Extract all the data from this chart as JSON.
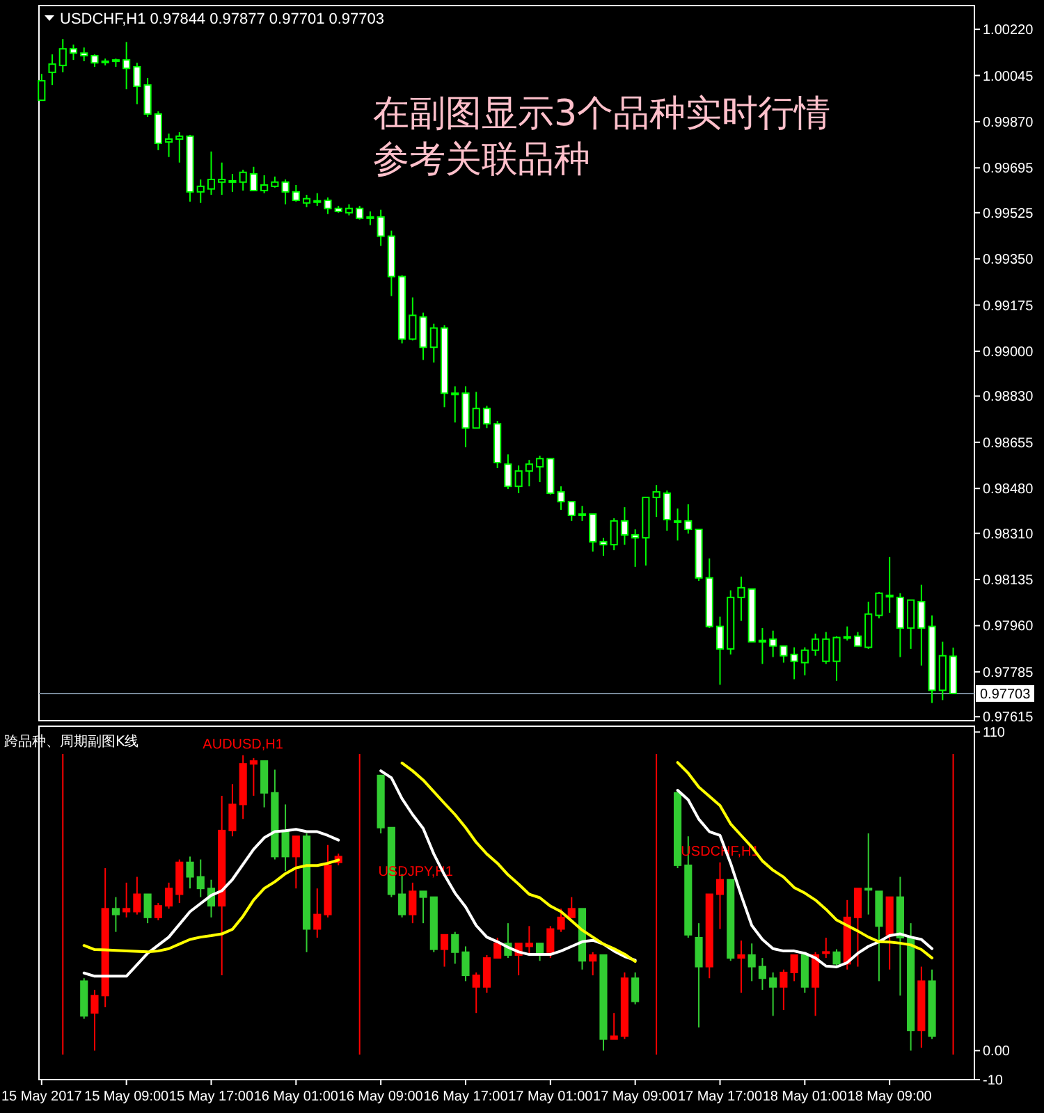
{
  "chart_data": [
    {
      "type": "candlestick",
      "title": "USDCHF,H1  0.97844 0.97877 0.97701 0.97703",
      "annotations": [
        "在副图显示3个品种实时行情",
        "参考关联品种"
      ],
      "xlim": [
        "2017-05-15T00:45",
        "2017-05-18T17:00"
      ],
      "ylim": [
        0.976,
        1.0031
      ],
      "yticks": [
        {
          "value": 1.0022,
          "label": "1.00220"
        },
        {
          "value": 1.00045,
          "label": "1.00045"
        },
        {
          "value": 0.9987,
          "label": "0.99870"
        },
        {
          "value": 0.99695,
          "label": "0.99695"
        },
        {
          "value": 0.99525,
          "label": "0.99525"
        },
        {
          "value": 0.9935,
          "label": "0.99350"
        },
        {
          "value": 0.99175,
          "label": "0.99175"
        },
        {
          "value": 0.99,
          "label": "0.99000"
        },
        {
          "value": 0.9883,
          "label": "0.98830"
        },
        {
          "value": 0.98655,
          "label": "0.98655"
        },
        {
          "value": 0.9848,
          "label": "0.98480"
        },
        {
          "value": 0.9831,
          "label": "0.98310"
        },
        {
          "value": 0.98135,
          "label": "0.98135"
        },
        {
          "value": 0.9796,
          "label": "0.97960"
        },
        {
          "value": 0.97785,
          "label": "0.97785"
        },
        {
          "value": 0.97615,
          "label": "0.97615"
        }
      ],
      "tick_labels": "y",
      "ref_lines": [
        {
          "axis": "y",
          "value": 0.97703,
          "label": "0.97703",
          "color": "#778899"
        }
      ],
      "series": [
        {
          "color": "#00ff00",
          "x": [
            "2017-05-15T01:00",
            "2017-05-15T02:00",
            "2017-05-15T03:00",
            "2017-05-15T04:00",
            "2017-05-15T05:00",
            "2017-05-15T06:00",
            "2017-05-15T07:00",
            "2017-05-15T08:00",
            "2017-05-15T09:00",
            "2017-05-15T10:00",
            "2017-05-15T11:00",
            "2017-05-15T12:00",
            "2017-05-15T13:00",
            "2017-05-15T14:00",
            "2017-05-15T15:00",
            "2017-05-15T16:00",
            "2017-05-15T17:00",
            "2017-05-15T18:00",
            "2017-05-15T19:00",
            "2017-05-15T20:00",
            "2017-05-15T21:00",
            "2017-05-15T22:00",
            "2017-05-15T23:00",
            "2017-05-16T00:00",
            "2017-05-16T01:00",
            "2017-05-16T02:00",
            "2017-05-16T03:00",
            "2017-05-16T04:00",
            "2017-05-16T05:00",
            "2017-05-16T06:00",
            "2017-05-16T07:00",
            "2017-05-16T08:00",
            "2017-05-16T09:00",
            "2017-05-16T10:00",
            "2017-05-16T11:00",
            "2017-05-16T12:00",
            "2017-05-16T13:00",
            "2017-05-16T14:00",
            "2017-05-16T15:00",
            "2017-05-16T16:00",
            "2017-05-16T17:00",
            "2017-05-16T18:00",
            "2017-05-16T19:00",
            "2017-05-16T20:00",
            "2017-05-16T21:00",
            "2017-05-16T22:00",
            "2017-05-16T23:00",
            "2017-05-17T00:00",
            "2017-05-17T01:00",
            "2017-05-17T02:00",
            "2017-05-17T03:00",
            "2017-05-17T04:00",
            "2017-05-17T05:00",
            "2017-05-17T06:00",
            "2017-05-17T07:00",
            "2017-05-17T08:00",
            "2017-05-17T09:00",
            "2017-05-17T10:00",
            "2017-05-17T11:00",
            "2017-05-17T12:00",
            "2017-05-17T13:00",
            "2017-05-17T14:00",
            "2017-05-17T15:00",
            "2017-05-17T16:00",
            "2017-05-17T17:00",
            "2017-05-17T18:00",
            "2017-05-17T19:00",
            "2017-05-17T20:00",
            "2017-05-17T21:00",
            "2017-05-17T22:00",
            "2017-05-17T23:00",
            "2017-05-18T00:00",
            "2017-05-18T01:00",
            "2017-05-18T02:00",
            "2017-05-18T03:00",
            "2017-05-18T04:00",
            "2017-05-18T05:00",
            "2017-05-18T06:00",
            "2017-05-18T07:00",
            "2017-05-18T08:00",
            "2017-05-18T09:00",
            "2017-05-18T10:00",
            "2017-05-18T11:00",
            "2017-05-18T12:00",
            "2017-05-18T13:00",
            "2017-05-18T14:00",
            "2017-05-18T15:00"
          ],
          "ohlc": [
            [
              0.99951,
              1.00051,
              0.99951,
              1.00025
            ],
            [
              1.00057,
              1.00125,
              1.00009,
              1.00088
            ],
            [
              1.00083,
              1.00183,
              1.00057,
              1.00146
            ],
            [
              1.00146,
              1.00162,
              1.00104,
              1.0013
            ],
            [
              1.0013,
              1.00151,
              1.00099,
              1.0012
            ],
            [
              1.0012,
              1.00125,
              1.00078,
              1.00093
            ],
            [
              1.00099,
              1.00109,
              1.00083,
              1.00096
            ],
            [
              1.00101,
              1.00109,
              1.00078,
              1.00104
            ],
            [
              1.00104,
              1.00172,
              0.99993,
              1.00072
            ],
            [
              1.00078,
              1.00093,
              0.99936,
              1.00004
            ],
            [
              1.00009,
              1.00036,
              0.99888,
              0.99899
            ],
            [
              0.99899,
              0.99909,
              0.99762,
              0.99788
            ],
            [
              0.99793,
              0.99825,
              0.99736,
              0.99804
            ],
            [
              0.99804,
              0.9983,
              0.99715,
              0.99815
            ],
            [
              0.99815,
              0.9982,
              0.99567,
              0.99604
            ],
            [
              0.99604,
              0.99651,
              0.99562,
              0.99625
            ],
            [
              0.99615,
              0.99757,
              0.99593,
              0.99651
            ],
            [
              0.99641,
              0.99715,
              0.99593,
              0.99651
            ],
            [
              0.99646,
              0.99672,
              0.99604,
              0.99643
            ],
            [
              0.99641,
              0.99688,
              0.99609,
              0.99678
            ],
            [
              0.99672,
              0.99699,
              0.99609,
              0.99609
            ],
            [
              0.99609,
              0.99667,
              0.99599,
              0.9963
            ],
            [
              0.99625,
              0.99662,
              0.9962,
              0.99641
            ],
            [
              0.99641,
              0.99651,
              0.99557,
              0.99604
            ],
            [
              0.99604,
              0.9963,
              0.99567,
              0.99572
            ],
            [
              0.99562,
              0.99593,
              0.99546,
              0.99578
            ],
            [
              0.99567,
              0.99599,
              0.99551,
              0.9957
            ],
            [
              0.99572,
              0.99583,
              0.9952,
              0.99541
            ],
            [
              0.99541,
              0.99551,
              0.99525,
              0.9953
            ],
            [
              0.99525,
              0.99557,
              0.99515,
              0.99541
            ],
            [
              0.99541,
              0.99551,
              0.99499,
              0.99504
            ],
            [
              0.99509,
              0.9953,
              0.99478,
              0.99506
            ],
            [
              0.99509,
              0.99536,
              0.99399,
              0.99436
            ],
            [
              0.99436,
              0.99457,
              0.99209,
              0.99283
            ],
            [
              0.99283,
              0.99288,
              0.9903,
              0.99046
            ],
            [
              0.99046,
              0.99204,
              0.99041,
              0.99136
            ],
            [
              0.9913,
              0.99146,
              0.98967,
              0.99015
            ],
            [
              0.99015,
              0.99104,
              0.98957,
              0.99088
            ],
            [
              0.99088,
              0.99099,
              0.98788,
              0.98841
            ],
            [
              0.98841,
              0.98867,
              0.9873,
              0.98838
            ],
            [
              0.98841,
              0.98867,
              0.98636,
              0.98709
            ],
            [
              0.98709,
              0.98846,
              0.98709,
              0.98783
            ],
            [
              0.98783,
              0.98793,
              0.98709,
              0.98725
            ],
            [
              0.98725,
              0.98736,
              0.98557,
              0.98578
            ],
            [
              0.98572,
              0.98609,
              0.98478,
              0.98488
            ],
            [
              0.98488,
              0.98567,
              0.98462,
              0.98546
            ],
            [
              0.98546,
              0.98588,
              0.98488,
              0.98572
            ],
            [
              0.98562,
              0.98604,
              0.98504,
              0.98593
            ],
            [
              0.98593,
              0.98593,
              0.98457,
              0.98462
            ],
            [
              0.98467,
              0.98488,
              0.98399,
              0.9843
            ],
            [
              0.9843,
              0.9843,
              0.98357,
              0.98378
            ],
            [
              0.98383,
              0.98414,
              0.98357,
              0.98381
            ],
            [
              0.98383,
              0.98383,
              0.98241,
              0.98278
            ],
            [
              0.98278,
              0.98293,
              0.98225,
              0.98267
            ],
            [
              0.98267,
              0.98367,
              0.98246,
              0.98357
            ],
            [
              0.98357,
              0.98409,
              0.98267,
              0.98304
            ],
            [
              0.98304,
              0.98325,
              0.98183,
              0.98293
            ],
            [
              0.98293,
              0.98446,
              0.98188,
              0.98446
            ],
            [
              0.98446,
              0.98493,
              0.98372,
              0.98467
            ],
            [
              0.98462,
              0.98472,
              0.9832,
              0.98362
            ],
            [
              0.98357,
              0.98404,
              0.98283,
              0.98354
            ],
            [
              0.98357,
              0.9842,
              0.98309,
              0.98325
            ],
            [
              0.98325,
              0.98325,
              0.9813,
              0.98141
            ],
            [
              0.98141,
              0.98215,
              0.97951,
              0.97957
            ],
            [
              0.97957,
              0.97994,
              0.97736,
              0.97872
            ],
            [
              0.97872,
              0.98094,
              0.97851,
              0.98067
            ],
            [
              0.98067,
              0.98146,
              0.97978,
              0.98104
            ],
            [
              0.98099,
              0.98099,
              0.97899,
              0.97899
            ],
            [
              0.97904,
              0.97951,
              0.97815,
              0.97901
            ],
            [
              0.97909,
              0.97941,
              0.97841,
              0.97883
            ],
            [
              0.97883,
              0.97883,
              0.9782,
              0.97846
            ],
            [
              0.97851,
              0.97878,
              0.97757,
              0.97825
            ],
            [
              0.9782,
              0.97878,
              0.97772,
              0.97867
            ],
            [
              0.97867,
              0.9793,
              0.97846,
              0.97909
            ],
            [
              0.97825,
              0.97936,
              0.97815,
              0.97909
            ],
            [
              0.97825,
              0.9792,
              0.97751,
              0.97915
            ],
            [
              0.97915,
              0.97957,
              0.97904,
              0.97918
            ],
            [
              0.9792,
              0.97936,
              0.97883,
              0.97883
            ],
            [
              0.97878,
              0.98051,
              0.97872,
              0.98004
            ],
            [
              0.97999,
              0.98088,
              0.97988,
              0.98083
            ],
            [
              0.98072,
              0.9822,
              0.98009,
              0.98075
            ],
            [
              0.98067,
              0.98083,
              0.97841,
              0.97951
            ],
            [
              0.97951,
              0.98057,
              0.97872,
              0.98057
            ],
            [
              0.98051,
              0.98115,
              0.97809,
              0.97951
            ],
            [
              0.97957,
              0.97999,
              0.97667,
              0.97715
            ],
            [
              0.97715,
              0.97899,
              0.97678,
              0.97846
            ],
            [
              0.97844,
              0.97877,
              0.97701,
              0.97703
            ]
          ],
          "colors": [
            "#000000",
            "#000000",
            "#000000",
            "#ffffff",
            "#ffffff",
            "#ffffff",
            "#ffffff",
            "#000000",
            "#ffffff",
            "#ffffff",
            "#ffffff",
            "#ffffff",
            "#000000",
            "#000000",
            "#ffffff",
            "#000000",
            "#000000",
            "#000000",
            "#ffffff",
            "#000000",
            "#ffffff",
            "#000000",
            "#000000",
            "#ffffff",
            "#ffffff",
            "#000000",
            "#000000",
            "#ffffff",
            "#ffffff",
            "#000000",
            "#ffffff",
            "#ffffff",
            "#ffffff",
            "#ffffff",
            "#ffffff",
            "#000000",
            "#ffffff",
            "#000000",
            "#ffffff",
            "#ffffff",
            "#ffffff",
            "#000000",
            "#ffffff",
            "#ffffff",
            "#ffffff",
            "#000000",
            "#000000",
            "#000000",
            "#ffffff",
            "#ffffff",
            "#ffffff",
            "#ffffff",
            "#ffffff",
            "#ffffff",
            "#000000",
            "#ffffff",
            "#ffffff",
            "#000000",
            "#000000",
            "#ffffff",
            "#ffffff",
            "#ffffff",
            "#ffffff",
            "#ffffff",
            "#ffffff",
            "#000000",
            "#000000",
            "#ffffff",
            "#ffffff",
            "#ffffff",
            "#ffffff",
            "#ffffff",
            "#000000",
            "#000000",
            "#000000",
            "#000000",
            "#000000",
            "#ffffff",
            "#000000",
            "#000000",
            "#000000",
            "#ffffff",
            "#000000",
            "#ffffff",
            "#ffffff",
            "#000000",
            "#ffffff"
          ]
        }
      ]
    },
    {
      "type": "candlestick",
      "title": "跨品种、周期副图K线",
      "xlim": [
        "2017-05-15T00:45",
        "2017-05-18T17:00"
      ],
      "xticks": [
        {
          "value": "2017-05-15T01:00",
          "label": "15 May 2017"
        },
        {
          "value": "2017-05-15T09:00",
          "label": "15 May 09:00"
        },
        {
          "value": "2017-05-15T17:00",
          "label": "15 May 17:00"
        },
        {
          "value": "2017-05-16T01:00",
          "label": "16 May 01:00"
        },
        {
          "value": "2017-05-16T09:00",
          "label": "16 May 09:00"
        },
        {
          "value": "2017-05-16T17:00",
          "label": "16 May 17:00"
        },
        {
          "value": "2017-05-17T01:00",
          "label": "17 May 01:00"
        },
        {
          "value": "2017-05-17T09:00",
          "label": "17 May 09:00"
        },
        {
          "value": "2017-05-17T17:00",
          "label": "17 May 17:00"
        },
        {
          "value": "2017-05-18T01:00",
          "label": "18 May 01:00"
        },
        {
          "value": "2017-05-18T09:00",
          "label": "18 May 09:00"
        }
      ],
      "ylim": [
        -10,
        112
      ],
      "yticks": [
        110,
        {
          "value": 0,
          "label": "0.00"
        },
        -10
      ],
      "ref_lines": [
        {
          "axis": "x",
          "value": "2017-05-15T03:00",
          "color": "#ff0000"
        },
        {
          "axis": "x",
          "value": "2017-05-16T07:00",
          "color": "#ff0000"
        },
        {
          "axis": "x",
          "value": "2017-05-17T11:00",
          "color": "#ff0000"
        },
        {
          "axis": "x",
          "value": "2017-05-18T15:00",
          "color": "#ff0000"
        }
      ],
      "series": [
        {
          "name": "AUDUSD,H1",
          "x": [
            "2017-05-15T05:00",
            "2017-05-15T06:00",
            "2017-05-15T07:00",
            "2017-05-15T08:00",
            "2017-05-15T09:00",
            "2017-05-15T10:00",
            "2017-05-15T11:00",
            "2017-05-15T12:00",
            "2017-05-15T13:00",
            "2017-05-15T14:00",
            "2017-05-15T15:00",
            "2017-05-15T16:00",
            "2017-05-15T17:00",
            "2017-05-15T18:00",
            "2017-05-15T19:00",
            "2017-05-15T20:00",
            "2017-05-15T21:00",
            "2017-05-15T22:00",
            "2017-05-15T23:00",
            "2017-05-16T00:00",
            "2017-05-16T01:00",
            "2017-05-16T02:00",
            "2017-05-16T03:00",
            "2017-05-16T04:00",
            "2017-05-16T05:00"
          ],
          "ohlc": [
            [
              24,
              25,
              11,
              12
            ],
            [
              13,
              21,
              0,
              19
            ],
            [
              19,
              63,
              15,
              49
            ],
            [
              49,
              53,
              41,
              47
            ],
            [
              48,
              58,
              46,
              49
            ],
            [
              48,
              60,
              47,
              54
            ],
            [
              54,
              54,
              44,
              46
            ],
            [
              46,
              51,
              45,
              50
            ],
            [
              50,
              58,
              49,
              56
            ],
            [
              54,
              66,
              51,
              65
            ],
            [
              65,
              67,
              56,
              60
            ],
            [
              60,
              66,
              53,
              56
            ],
            [
              56,
              59,
              46,
              50
            ],
            [
              50,
              88,
              26,
              76
            ],
            [
              76,
              92,
              74,
              85
            ],
            [
              85,
              102,
              80,
              99
            ],
            [
              99,
              101,
              88,
              100
            ],
            [
              100,
              100,
              84,
              89
            ],
            [
              89,
              97,
              66,
              67
            ],
            [
              76,
              85,
              62,
              67
            ],
            [
              67,
              74,
              56,
              74
            ],
            [
              74,
              75,
              34,
              42
            ],
            [
              42,
              56,
              39,
              47
            ],
            [
              47,
              71,
              46,
              64
            ],
            [
              65,
              68,
              64,
              67
            ]
          ],
          "colors": [
            "#32cd32",
            "#ff0000",
            "#ff0000",
            "#32cd32",
            "#ff0000",
            "#ff0000",
            "#32cd32",
            "#ff0000",
            "#ff0000",
            "#ff0000",
            "#32cd32",
            "#32cd32",
            "#32cd32",
            "#ff0000",
            "#ff0000",
            "#ff0000",
            "#ff0000",
            "#32cd32",
            "#32cd32",
            "#32cd32",
            "#ff0000",
            "#32cd32",
            "#ff0000",
            "#ff0000",
            "#ff0000"
          ]
        },
        {
          "type": "line",
          "color": "#ffffff",
          "x": [
            "2017-05-15T05:00",
            "2017-05-15T06:00",
            "2017-05-15T09:00",
            "2017-05-15T11:00",
            "2017-05-15T13:00",
            "2017-05-15T15:00",
            "2017-05-15T17:00",
            "2017-05-15T18:00",
            "2017-05-15T19:00",
            "2017-05-15T21:00",
            "2017-05-15T22:00",
            "2017-05-15T23:00",
            "2017-05-16T00:00",
            "2017-05-16T01:00",
            "2017-05-16T02:00",
            "2017-05-16T03:00",
            "2017-05-16T04:00",
            "2017-05-16T05:00"
          ],
          "values": [
            26.8,
            25.7,
            25.7,
            33.6,
            39.2,
            48,
            53.6,
            55.2,
            59.1,
            69.5,
            73.5,
            75.6,
            75.9,
            76.4,
            75.6,
            75.6,
            74.3,
            72.7
          ]
        },
        {
          "type": "line",
          "color": "#ffff00",
          "x": [
            "2017-05-15T05:00",
            "2017-05-15T06:00",
            "2017-05-15T07:00",
            "2017-05-15T09:00",
            "2017-05-15T11:00",
            "2017-05-15T12:00",
            "2017-05-15T13:00",
            "2017-05-15T14:00",
            "2017-05-15T15:00",
            "2017-05-15T16:00",
            "2017-05-15T17:00",
            "2017-05-15T18:00",
            "2017-05-15T19:00",
            "2017-05-15T20:00",
            "2017-05-15T21:00",
            "2017-05-15T22:00",
            "2017-05-15T23:00",
            "2017-05-16T00:00",
            "2017-05-16T01:00",
            "2017-05-16T02:00",
            "2017-05-16T03:00",
            "2017-05-16T04:00",
            "2017-05-16T05:00"
          ],
          "values": [
            36.3,
            34.9,
            34.8,
            34.4,
            34.1,
            34.4,
            35.2,
            36.8,
            38.4,
            39.2,
            39.7,
            40.3,
            41.9,
            46.4,
            52,
            56,
            58.3,
            61.1,
            63.1,
            63.9,
            63.9,
            64.7,
            65.8
          ]
        },
        {
          "name": "USDJPY,H1",
          "x": [
            "2017-05-16T09:00",
            "2017-05-16T10:00",
            "2017-05-16T11:00",
            "2017-05-16T12:00",
            "2017-05-16T13:00",
            "2017-05-16T14:00",
            "2017-05-16T15:00",
            "2017-05-16T16:00",
            "2017-05-16T17:00",
            "2017-05-16T18:00",
            "2017-05-16T19:00",
            "2017-05-16T20:00",
            "2017-05-16T21:00",
            "2017-05-16T22:00",
            "2017-05-16T23:00",
            "2017-05-17T00:00",
            "2017-05-17T01:00",
            "2017-05-17T02:00",
            "2017-05-17T03:00",
            "2017-05-17T04:00",
            "2017-05-17T05:00",
            "2017-05-17T06:00",
            "2017-05-17T07:00",
            "2017-05-17T08:00",
            "2017-05-17T09:00"
          ],
          "ohlc": [
            [
              95,
              95,
              75,
              77
            ],
            [
              77,
              77,
              53,
              54
            ],
            [
              54,
              61,
              46,
              47
            ],
            [
              47,
              58,
              44,
              55
            ],
            [
              55,
              55,
              44,
              53
            ],
            [
              53,
              53,
              34,
              35
            ],
            [
              35,
              40,
              29,
              40
            ],
            [
              40,
              41,
              30,
              34
            ],
            [
              34,
              36,
              24,
              26
            ],
            [
              22,
              27,
              13,
              26
            ],
            [
              22,
              33,
              20,
              32
            ],
            [
              32,
              39,
              32,
              37
            ],
            [
              37,
              44,
              32,
              33
            ],
            [
              33,
              37,
              26,
              37
            ],
            [
              36,
              43,
              33,
              37
            ],
            [
              37,
              37,
              31,
              33
            ],
            [
              34,
              43,
              32,
              42
            ],
            [
              42,
              49,
              41,
              46
            ],
            [
              46,
              53,
              46,
              49
            ],
            [
              49,
              49,
              28,
              31
            ],
            [
              31,
              34,
              26,
              33
            ],
            [
              33,
              33,
              0,
              4
            ],
            [
              4,
              13,
              4,
              5
            ],
            [
              5,
              27,
              4,
              25
            ],
            [
              25,
              27,
              16,
              17
            ]
          ],
          "colors": [
            "#32cd32",
            "#32cd32",
            "#32cd32",
            "#ff0000",
            "#32cd32",
            "#32cd32",
            "#ff0000",
            "#32cd32",
            "#32cd32",
            "#ff0000",
            "#ff0000",
            "#ff0000",
            "#32cd32",
            "#ff0000",
            "#ff0000",
            "#32cd32",
            "#ff0000",
            "#ff0000",
            "#ff0000",
            "#32cd32",
            "#ff0000",
            "#32cd32",
            "#ff0000",
            "#ff0000",
            "#32cd32"
          ]
        },
        {
          "type": "line",
          "color": "#ffffff",
          "x": [
            "2017-05-16T09:00",
            "2017-05-16T10:00",
            "2017-05-16T11:00",
            "2017-05-16T12:00",
            "2017-05-16T13:00",
            "2017-05-16T14:00",
            "2017-05-16T15:00",
            "2017-05-16T16:00",
            "2017-05-16T17:00",
            "2017-05-16T18:00",
            "2017-05-16T19:00",
            "2017-05-16T20:00",
            "2017-05-16T21:00",
            "2017-05-16T22:00",
            "2017-05-16T23:00",
            "2017-05-17T00:00",
            "2017-05-17T01:00",
            "2017-05-17T02:00",
            "2017-05-17T03:00",
            "2017-05-17T04:00",
            "2017-05-17T05:00",
            "2017-05-17T06:00",
            "2017-05-17T07:00",
            "2017-05-17T08:00",
            "2017-05-17T09:00"
          ],
          "values": [
            96.6,
            94.2,
            87,
            81.5,
            76.7,
            67.9,
            60.7,
            54.4,
            49.6,
            43.2,
            39.2,
            37.6,
            35.7,
            34.1,
            33.2,
            33.2,
            33.2,
            34.4,
            36,
            37.6,
            38.1,
            36.8,
            34.4,
            32.5,
            31.2
          ]
        },
        {
          "type": "line",
          "color": "#ffff00",
          "x": [
            "2017-05-16T11:00",
            "2017-05-16T12:00",
            "2017-05-16T13:00",
            "2017-05-16T14:00",
            "2017-05-16T15:00",
            "2017-05-16T16:00",
            "2017-05-16T17:00",
            "2017-05-16T18:00",
            "2017-05-16T19:00",
            "2017-05-16T20:00",
            "2017-05-16T21:00",
            "2017-05-16T22:00",
            "2017-05-16T23:00",
            "2017-05-17T00:00",
            "2017-05-17T01:00",
            "2017-05-17T02:00",
            "2017-05-17T03:00",
            "2017-05-17T04:00",
            "2017-05-17T05:00",
            "2017-05-17T06:00",
            "2017-05-17T07:00",
            "2017-05-17T08:00",
            "2017-05-17T09:00"
          ],
          "values": [
            99.3,
            96.6,
            93.4,
            89.4,
            85.4,
            81.5,
            77,
            71.9,
            67.9,
            64.7,
            60.7,
            57.5,
            54,
            52.8,
            49.9,
            48,
            44.8,
            41.6,
            39.2,
            36.8,
            35.2,
            33.3,
            30.8
          ]
        },
        {
          "name": "USDCHF,H1",
          "x": [
            "2017-05-17T13:00",
            "2017-05-17T14:00",
            "2017-05-17T15:00",
            "2017-05-17T16:00",
            "2017-05-17T17:00",
            "2017-05-17T18:00",
            "2017-05-17T19:00",
            "2017-05-17T20:00",
            "2017-05-17T21:00",
            "2017-05-17T22:00",
            "2017-05-17T23:00",
            "2017-05-18T00:00",
            "2017-05-18T01:00",
            "2017-05-18T02:00",
            "2017-05-18T03:00",
            "2017-05-18T04:00",
            "2017-05-18T05:00",
            "2017-05-18T06:00",
            "2017-05-18T07:00",
            "2017-05-18T08:00",
            "2017-05-18T09:00",
            "2017-05-18T10:00",
            "2017-05-18T11:00",
            "2017-05-18T12:00",
            "2017-05-18T13:00"
          ],
          "ohlc": [
            [
              89,
              90,
              63,
              64
            ],
            [
              64,
              74,
              39,
              40
            ],
            [
              39,
              44,
              8,
              29
            ],
            [
              29,
              54,
              25,
              54
            ],
            [
              54,
              65,
              42,
              59
            ],
            [
              59,
              59,
              31,
              32
            ],
            [
              32,
              38,
              20,
              33
            ],
            [
              33,
              37,
              24,
              29
            ],
            [
              29,
              32,
              21,
              25
            ],
            [
              25,
              27,
              12,
              22
            ],
            [
              22,
              28,
              14,
              27
            ],
            [
              27,
              33,
              24,
              33
            ],
            [
              33,
              34,
              20,
              22
            ],
            [
              22,
              34,
              12,
              33
            ],
            [
              33.8,
              39,
              32,
              34.1
            ],
            [
              34,
              35,
              29,
              30
            ],
            [
              30,
              52,
              28,
              46
            ],
            [
              46,
              56,
              29,
              56
            ],
            [
              56,
              75,
              47,
              55.5
            ],
            [
              55,
              55,
              24,
              43
            ],
            [
              40,
              53,
              28,
              53
            ],
            [
              53,
              60,
              19,
              39
            ],
            [
              39,
              44,
              0,
              7
            ],
            [
              7,
              29,
              1,
              24
            ],
            [
              24,
              28,
              4,
              5
            ]
          ],
          "colors": [
            "#32cd32",
            "#32cd32",
            "#32cd32",
            "#ff0000",
            "#ff0000",
            "#32cd32",
            "#ff0000",
            "#32cd32",
            "#32cd32",
            "#32cd32",
            "#ff0000",
            "#ff0000",
            "#32cd32",
            "#ff0000",
            "#ff0000",
            "#32cd32",
            "#ff0000",
            "#ff0000",
            "#32cd32",
            "#32cd32",
            "#ff0000",
            "#32cd32",
            "#32cd32",
            "#ff0000",
            "#32cd32"
          ]
        },
        {
          "type": "line",
          "color": "#ffffff",
          "x": [
            "2017-05-17T13:00",
            "2017-05-17T14:00",
            "2017-05-17T15:00",
            "2017-05-17T16:00",
            "2017-05-17T17:00",
            "2017-05-17T18:00",
            "2017-05-17T19:00",
            "2017-05-17T20:00",
            "2017-05-17T21:00",
            "2017-05-17T22:00",
            "2017-05-17T23:00",
            "2017-05-18T00:00",
            "2017-05-18T01:00",
            "2017-05-18T02:00",
            "2017-05-18T03:00",
            "2017-05-18T04:00",
            "2017-05-18T05:00",
            "2017-05-18T06:00",
            "2017-05-18T07:00",
            "2017-05-18T08:00",
            "2017-05-18T09:00",
            "2017-05-18T10:00",
            "2017-05-18T11:00",
            "2017-05-18T12:00",
            "2017-05-18T13:00"
          ],
          "values": [
            89.9,
            86.6,
            79.9,
            75.6,
            74.3,
            64.7,
            53.6,
            43.2,
            38.4,
            35.2,
            34.4,
            34.4,
            33.6,
            32,
            29.2,
            28.9,
            30.4,
            33.6,
            36,
            37.6,
            39.7,
            40.3,
            39.2,
            38.4,
            35.2
          ]
        },
        {
          "type": "line",
          "color": "#ffff00",
          "x": [
            "2017-05-17T13:00",
            "2017-05-17T14:00",
            "2017-05-17T15:00",
            "2017-05-17T16:00",
            "2017-05-17T17:00",
            "2017-05-17T18:00",
            "2017-05-17T19:00",
            "2017-05-17T20:00",
            "2017-05-17T21:00",
            "2017-05-17T22:00",
            "2017-05-17T23:00",
            "2017-05-18T00:00",
            "2017-05-18T01:00",
            "2017-05-18T02:00",
            "2017-05-18T03:00",
            "2017-05-18T04:00",
            "2017-05-18T05:00",
            "2017-05-18T06:00",
            "2017-05-18T07:00",
            "2017-05-18T08:00",
            "2017-05-18T09:00",
            "2017-05-18T10:00",
            "2017-05-18T11:00",
            "2017-05-18T12:00",
            "2017-05-18T13:00"
          ],
          "values": [
            99.5,
            95.8,
            91,
            87.8,
            84.6,
            78.3,
            74.3,
            70.3,
            65.5,
            62.3,
            59.9,
            56.3,
            54.4,
            52,
            48.8,
            45.1,
            43.2,
            41.3,
            39.2,
            37.6,
            37.5,
            37.1,
            36.5,
            34.9,
            32
          ]
        }
      ]
    }
  ]
}
